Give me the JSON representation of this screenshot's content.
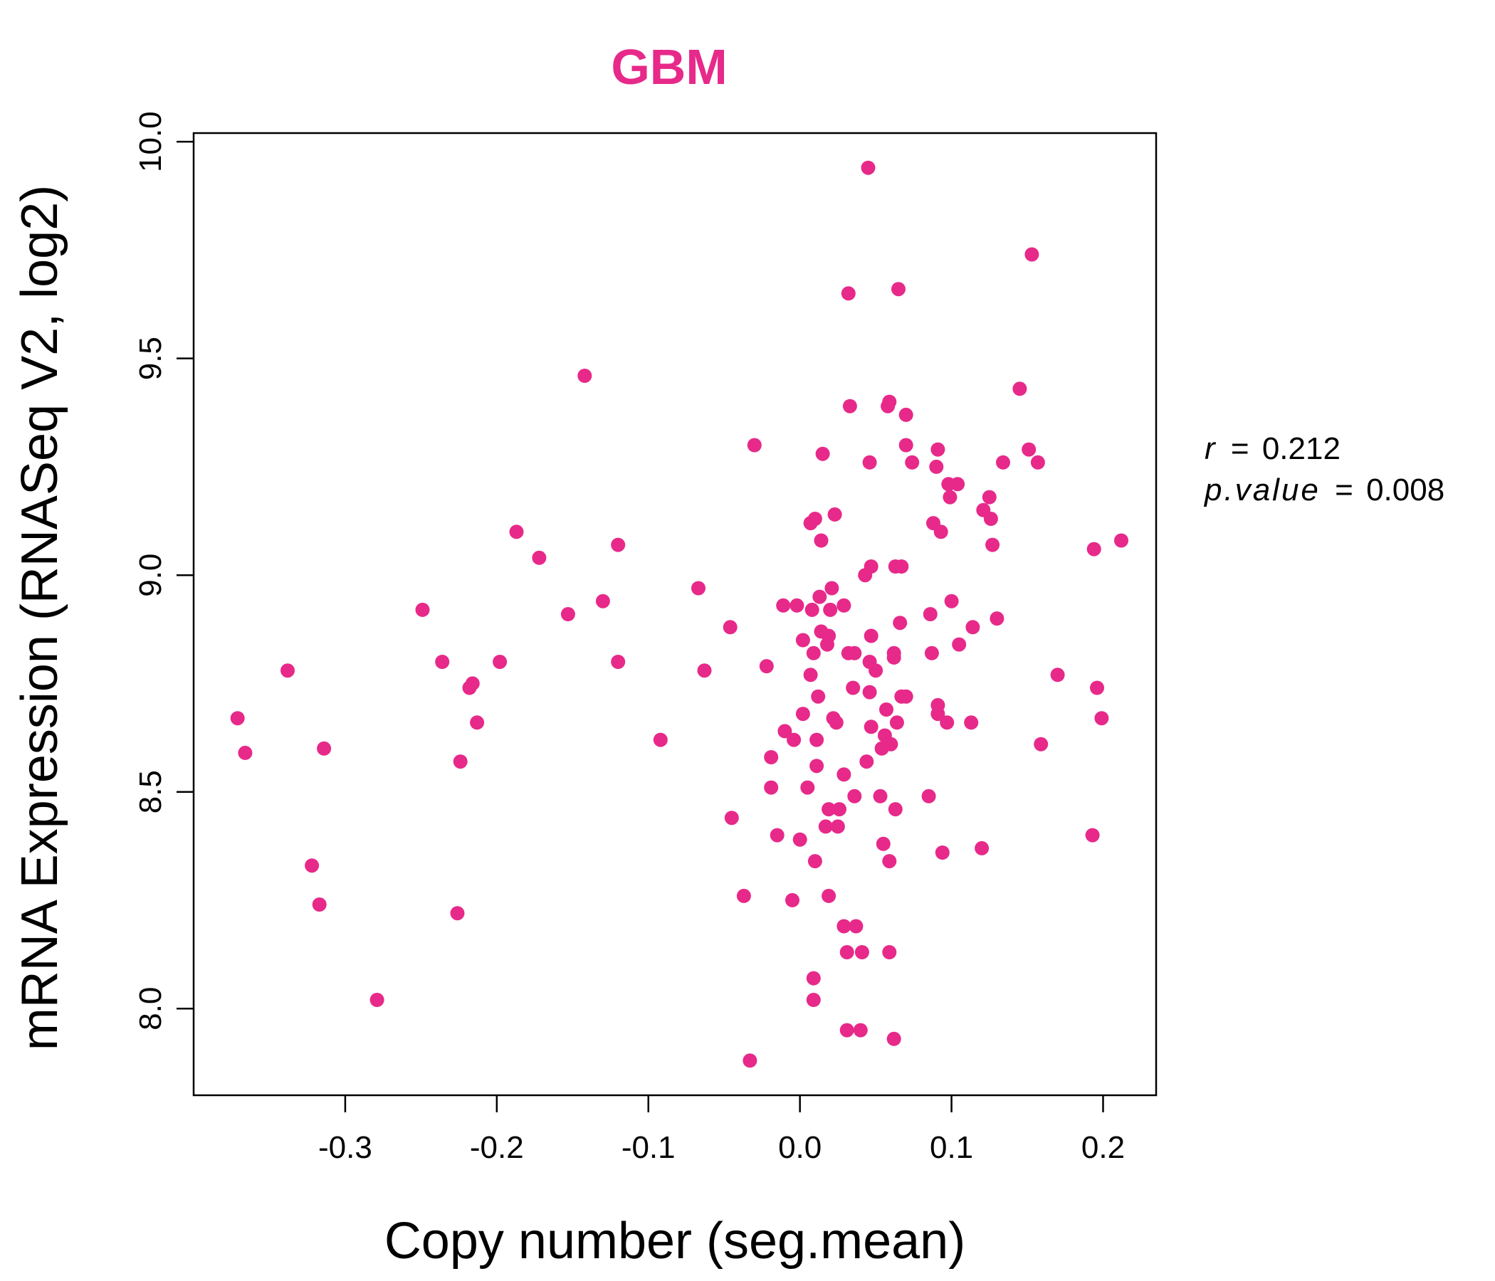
{
  "chart_data": {
    "type": "scatter",
    "title": "GBM",
    "xlabel": "Copy number (seg.mean)",
    "ylabel": "mRNA Expression (RNASeq V2, log2)",
    "xlim": [
      -0.4,
      0.235
    ],
    "ylim": [
      7.8,
      10.02
    ],
    "x_ticks": [
      -0.3,
      -0.2,
      -0.1,
      0.0,
      0.1,
      0.2
    ],
    "x_tick_labels": [
      "-0.3",
      "-0.2",
      "-0.1",
      "0.0",
      "0.1",
      "0.2"
    ],
    "y_ticks": [
      8.0,
      8.5,
      9.0,
      9.5,
      10.0
    ],
    "y_tick_labels": [
      "8.0",
      "8.5",
      "9.0",
      "9.5",
      "10.0"
    ],
    "grid": false,
    "stats": {
      "r_label": "r",
      "r_value": "0.212",
      "p_label": "p.value",
      "p_value": "0.008",
      "equals": "="
    },
    "colors": {
      "point": "#E7298A",
      "title": "#E7298A",
      "axis": "#000000"
    },
    "points": [
      [
        0.045,
        9.94
      ],
      [
        0.153,
        9.74
      ],
      [
        0.032,
        9.65
      ],
      [
        0.065,
        9.66
      ],
      [
        -0.142,
        9.46
      ],
      [
        0.145,
        9.43
      ],
      [
        0.059,
        9.4
      ],
      [
        0.058,
        9.39
      ],
      [
        0.033,
        9.39
      ],
      [
        0.07,
        9.37
      ],
      [
        -0.03,
        9.3
      ],
      [
        0.07,
        9.3
      ],
      [
        0.151,
        9.29
      ],
      [
        0.091,
        9.29
      ],
      [
        0.015,
        9.28
      ],
      [
        0.046,
        9.26
      ],
      [
        0.074,
        9.26
      ],
      [
        0.134,
        9.26
      ],
      [
        0.157,
        9.26
      ],
      [
        0.09,
        9.25
      ],
      [
        0.098,
        9.21
      ],
      [
        0.104,
        9.21
      ],
      [
        0.099,
        9.18
      ],
      [
        0.125,
        9.18
      ],
      [
        0.121,
        9.15
      ],
      [
        0.023,
        9.14
      ],
      [
        0.007,
        9.12
      ],
      [
        0.01,
        9.13
      ],
      [
        0.088,
        9.12
      ],
      [
        0.126,
        9.13
      ],
      [
        0.093,
        9.1
      ],
      [
        -0.187,
        9.1
      ],
      [
        0.014,
        9.08
      ],
      [
        -0.12,
        9.07
      ],
      [
        0.127,
        9.07
      ],
      [
        0.194,
        9.06
      ],
      [
        0.212,
        9.08
      ],
      [
        -0.172,
        9.04
      ],
      [
        0.067,
        9.02
      ],
      [
        0.047,
        9.02
      ],
      [
        0.063,
        9.02
      ],
      [
        0.043,
        9.0
      ],
      [
        0.021,
        8.97
      ],
      [
        -0.067,
        8.97
      ],
      [
        0.013,
        8.95
      ],
      [
        -0.13,
        8.94
      ],
      [
        0.029,
        8.93
      ],
      [
        0.1,
        8.94
      ],
      [
        -0.011,
        8.93
      ],
      [
        -0.002,
        8.93
      ],
      [
        0.008,
        8.92
      ],
      [
        -0.249,
        8.92
      ],
      [
        0.02,
        8.92
      ],
      [
        -0.153,
        8.91
      ],
      [
        0.086,
        8.91
      ],
      [
        0.13,
        8.9
      ],
      [
        0.066,
        8.89
      ],
      [
        -0.046,
        8.88
      ],
      [
        0.114,
        8.88
      ],
      [
        0.014,
        8.87
      ],
      [
        0.047,
        8.86
      ],
      [
        0.019,
        8.86
      ],
      [
        0.002,
        8.85
      ],
      [
        0.018,
        8.84
      ],
      [
        0.105,
        8.84
      ],
      [
        0.009,
        8.82
      ],
      [
        0.032,
        8.82
      ],
      [
        0.036,
        8.82
      ],
      [
        0.062,
        8.82
      ],
      [
        0.087,
        8.82
      ],
      [
        0.062,
        8.81
      ],
      [
        0.046,
        8.8
      ],
      [
        -0.198,
        8.8
      ],
      [
        -0.236,
        8.8
      ],
      [
        -0.12,
        8.8
      ],
      [
        -0.022,
        8.79
      ],
      [
        -0.338,
        8.78
      ],
      [
        -0.063,
        8.78
      ],
      [
        0.05,
        8.78
      ],
      [
        0.007,
        8.77
      ],
      [
        0.17,
        8.77
      ],
      [
        -0.216,
        8.75
      ],
      [
        -0.218,
        8.74
      ],
      [
        0.035,
        8.74
      ],
      [
        0.196,
        8.74
      ],
      [
        0.046,
        8.73
      ],
      [
        0.012,
        8.72
      ],
      [
        0.067,
        8.72
      ],
      [
        0.07,
        8.72
      ],
      [
        0.091,
        8.7
      ],
      [
        0.057,
        8.69
      ],
      [
        0.002,
        8.68
      ],
      [
        0.091,
        8.68
      ],
      [
        -0.371,
        8.67
      ],
      [
        0.199,
        8.67
      ],
      [
        0.022,
        8.67
      ],
      [
        -0.213,
        8.66
      ],
      [
        0.024,
        8.66
      ],
      [
        0.097,
        8.66
      ],
      [
        0.113,
        8.66
      ],
      [
        0.064,
        8.66
      ],
      [
        0.047,
        8.65
      ],
      [
        -0.01,
        8.64
      ],
      [
        0.056,
        8.63
      ],
      [
        -0.092,
        8.62
      ],
      [
        -0.004,
        8.62
      ],
      [
        0.011,
        8.62
      ],
      [
        0.159,
        8.61
      ],
      [
        0.06,
        8.61
      ],
      [
        -0.314,
        8.6
      ],
      [
        0.054,
        8.6
      ],
      [
        -0.366,
        8.59
      ],
      [
        -0.019,
        8.58
      ],
      [
        0.044,
        8.57
      ],
      [
        -0.224,
        8.57
      ],
      [
        0.011,
        8.56
      ],
      [
        0.029,
        8.54
      ],
      [
        -0.019,
        8.51
      ],
      [
        0.005,
        8.51
      ],
      [
        0.053,
        8.49
      ],
      [
        0.085,
        8.49
      ],
      [
        0.036,
        8.49
      ],
      [
        0.026,
        8.46
      ],
      [
        0.063,
        8.46
      ],
      [
        0.019,
        8.46
      ],
      [
        -0.045,
        8.44
      ],
      [
        0.017,
        8.42
      ],
      [
        0.025,
        8.42
      ],
      [
        -0.015,
        8.4
      ],
      [
        0.0,
        8.39
      ],
      [
        0.193,
        8.4
      ],
      [
        0.055,
        8.38
      ],
      [
        0.12,
        8.37
      ],
      [
        0.094,
        8.36
      ],
      [
        0.059,
        8.34
      ],
      [
        0.01,
        8.34
      ],
      [
        -0.322,
        8.33
      ],
      [
        -0.037,
        8.26
      ],
      [
        0.019,
        8.26
      ],
      [
        -0.005,
        8.25
      ],
      [
        -0.317,
        8.24
      ],
      [
        -0.226,
        8.22
      ],
      [
        0.037,
        8.19
      ],
      [
        0.029,
        8.19
      ],
      [
        0.031,
        8.13
      ],
      [
        0.041,
        8.13
      ],
      [
        0.059,
        8.13
      ],
      [
        0.009,
        8.07
      ],
      [
        -0.279,
        8.02
      ],
      [
        0.009,
        8.02
      ],
      [
        0.031,
        7.95
      ],
      [
        0.04,
        7.95
      ],
      [
        0.062,
        7.93
      ],
      [
        -0.033,
        7.88
      ]
    ]
  }
}
